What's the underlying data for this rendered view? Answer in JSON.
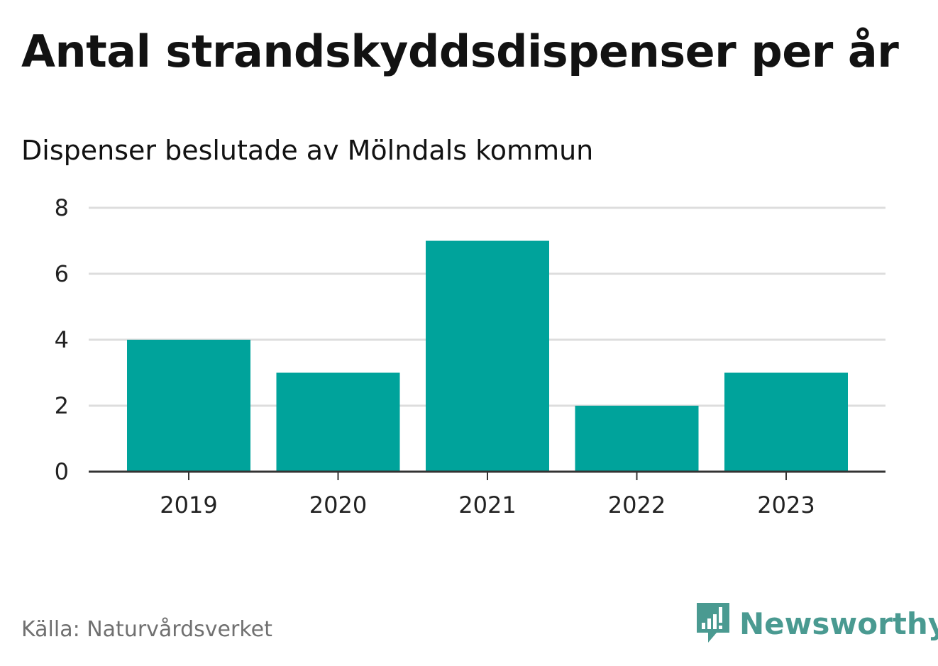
{
  "header": {
    "title": "Antal strandskyddsdispenser per år",
    "subtitle": "Dispenser beslutade av Mölndals kommun"
  },
  "footer": {
    "source": "Källa: Naturvårdsverket",
    "brand": "Newsworthy"
  },
  "colors": {
    "bar": "#00a39b",
    "grid": "#dddddd",
    "axis": "#333333",
    "brand": "#4a9a91"
  },
  "chart_data": {
    "type": "bar",
    "title": "Antal strandskyddsdispenser per år",
    "subtitle": "Dispenser beslutade av Mölndals kommun",
    "categories": [
      "2019",
      "2020",
      "2021",
      "2022",
      "2023"
    ],
    "values": [
      4,
      3,
      7,
      2,
      3
    ],
    "xlabel": "",
    "ylabel": "",
    "ylim": [
      0,
      8
    ],
    "yticks": [
      0,
      2,
      4,
      6,
      8
    ],
    "grid": true,
    "legend": "none"
  }
}
